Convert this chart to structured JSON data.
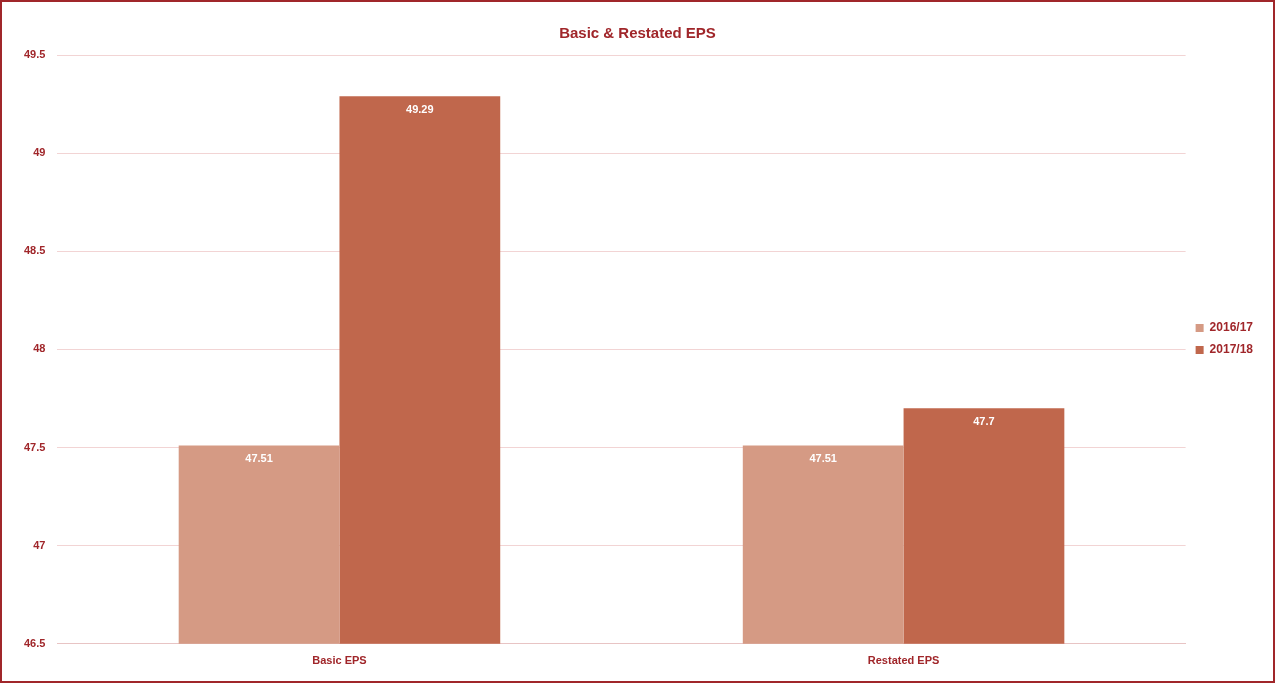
{
  "chart_data": {
    "type": "bar",
    "title": "Basic & Restated EPS",
    "categories": [
      "Basic EPS",
      "Restated EPS"
    ],
    "series": [
      {
        "name": "2016/17",
        "color": "#d59a84",
        "values": [
          47.51,
          47.51
        ]
      },
      {
        "name": "2017/18",
        "color": "#c0674c",
        "values": [
          49.29,
          47.7
        ]
      }
    ],
    "ylim": [
      46.5,
      49.5
    ],
    "yticks": [
      46.5,
      47,
      47.5,
      48,
      48.5,
      49,
      49.5
    ],
    "grid": "y",
    "legend": "right",
    "data_labels": true
  }
}
